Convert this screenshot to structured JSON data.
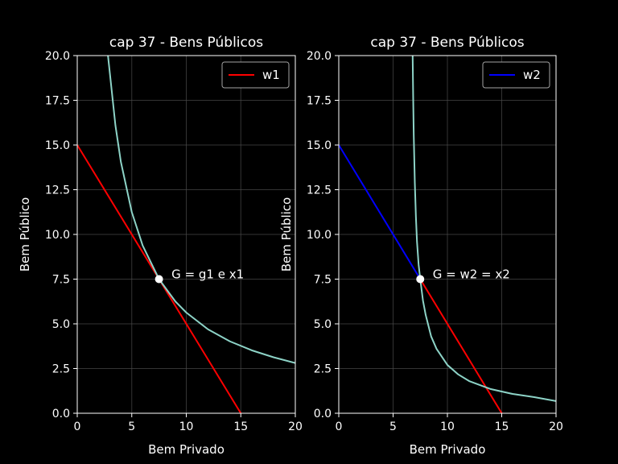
{
  "chart_data": [
    {
      "type": "line",
      "title": "cap 37 - Bens Públicos",
      "xlabel": "Bem Privado",
      "ylabel": "Bem Público",
      "xlim": [
        0,
        20
      ],
      "ylim": [
        0,
        20
      ],
      "xticks": [
        "0",
        "5",
        "10",
        "15",
        "20"
      ],
      "yticks": [
        "0.0",
        "2.5",
        "5.0",
        "7.5",
        "10.0",
        "12.5",
        "15.0",
        "17.5",
        "20.0"
      ],
      "grid": true,
      "legend_position": "top-right",
      "series": [
        {
          "name": "w1",
          "kind": "line",
          "color": "#ff0000",
          "x": [
            0,
            15
          ],
          "y": [
            15,
            0
          ]
        },
        {
          "kind": "curve",
          "color": "#8dd3c7",
          "x": [
            2.8,
            3.5,
            4,
            5,
            6,
            7.5,
            9,
            10,
            12,
            14,
            16,
            18,
            20
          ],
          "y": [
            20.1,
            16.1,
            14.06,
            11.25,
            9.38,
            7.5,
            6.25,
            5.63,
            4.69,
            4.02,
            3.52,
            3.13,
            2.81
          ]
        }
      ],
      "point": {
        "x": 7.5,
        "y": 7.5,
        "color": "#ffffff"
      },
      "annotation": {
        "text": "G = g1 e x1",
        "x": 8.5,
        "y": 7.5
      }
    },
    {
      "type": "line",
      "title": "cap 37 - Bens Públicos",
      "xlabel": "Bem Privado",
      "ylabel": "Bem Público",
      "xlim": [
        0,
        20
      ],
      "ylim": [
        0,
        20
      ],
      "xticks": [
        "0",
        "5",
        "10",
        "15",
        "20"
      ],
      "yticks": [
        "0.0",
        "2.5",
        "5.0",
        "7.5",
        "10.0",
        "12.5",
        "15.0",
        "17.5",
        "20.0"
      ],
      "grid": true,
      "legend_position": "top-right",
      "series": [
        {
          "kind": "line",
          "color": "#ff0000",
          "x": [
            7.5,
            15
          ],
          "y": [
            7.5,
            0
          ]
        },
        {
          "name": "w2",
          "kind": "line",
          "color": "#0000ff",
          "x": [
            0,
            7.5
          ],
          "y": [
            15,
            7.5
          ]
        },
        {
          "kind": "curve",
          "color": "#8dd3c7",
          "x": [
            6.8,
            6.85,
            6.9,
            7.0,
            7.1,
            7.2,
            7.35,
            7.5,
            7.75,
            8.0,
            8.5,
            9,
            10,
            11,
            12,
            14,
            16,
            18,
            20
          ],
          "y": [
            20,
            17.6,
            15.6,
            12.9,
            11.0,
            9.6,
            8.3,
            7.5,
            6.3,
            5.5,
            4.3,
            3.6,
            2.7,
            2.17,
            1.8,
            1.35,
            1.08,
            0.9,
            0.68
          ]
        }
      ],
      "point": {
        "x": 7.5,
        "y": 7.5,
        "color": "#ffffff"
      },
      "annotation": {
        "text": "G = w2 = x2",
        "x": 8.5,
        "y": 7.5
      }
    }
  ]
}
